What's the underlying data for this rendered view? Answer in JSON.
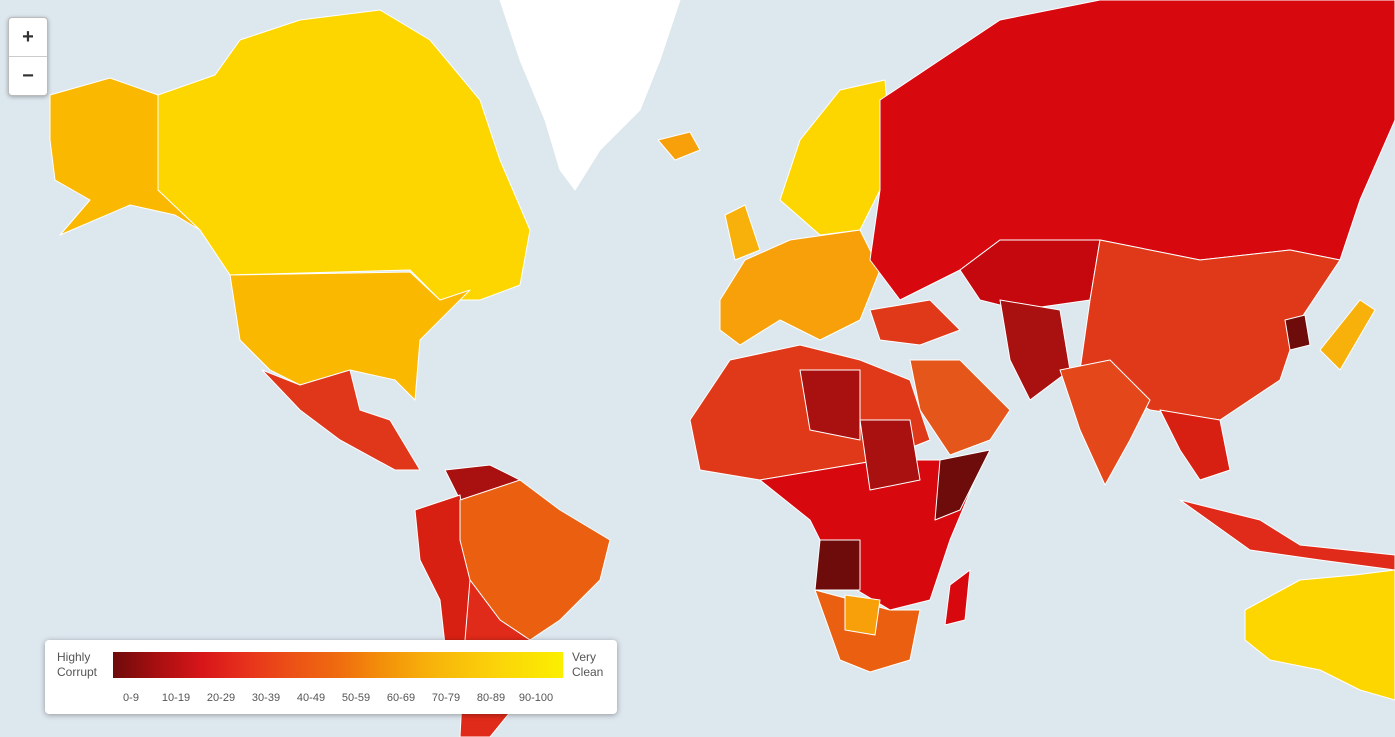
{
  "zoom_controls": {
    "zoom_in": "+",
    "zoom_out": "−"
  },
  "legend": {
    "low_label": "Highly Corrupt",
    "high_label": "Very Clean",
    "ranges": [
      "0-9",
      "10-19",
      "20-29",
      "30-39",
      "40-49",
      "50-59",
      "60-69",
      "70-79",
      "80-89",
      "90-100"
    ]
  }
}
